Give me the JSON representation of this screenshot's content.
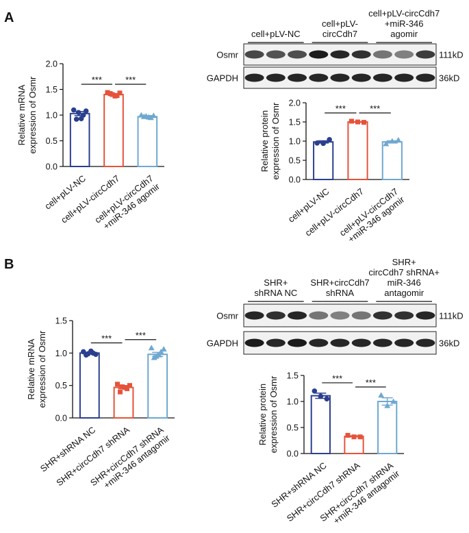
{
  "panel_labels": [
    "A",
    "B"
  ],
  "blots": [
    {
      "groups": [
        [
          "cell+pLV-NC"
        ],
        [
          "cell+pLV-",
          "circCdh7"
        ],
        [
          "cell+pLV-circCdh7",
          "+miR-346",
          "agomir"
        ]
      ],
      "rows": [
        {
          "label": "Osmr",
          "size": "111kD"
        },
        {
          "label": "GAPDH",
          "size": "36kD"
        }
      ]
    },
    {
      "groups": [
        [
          "SHR+",
          "shRNA NC"
        ],
        [
          "SHR+circCdh7",
          "shRNA"
        ],
        [
          "SHR+",
          "circCdh7 shRNA+",
          "miR-346",
          "antagomir"
        ]
      ],
      "rows": [
        {
          "label": "Osmr",
          "size": "111kD"
        },
        {
          "label": "GAPDH",
          "size": "36kD"
        }
      ]
    }
  ],
  "chart_data": [
    {
      "type": "bar",
      "ylabel": [
        "Relative mRNA",
        "expression of Osmr"
      ],
      "categories": [
        [
          "cell+pLV-NC"
        ],
        [
          "cell+pLV-circCdh7"
        ],
        [
          "cell+pLV-circCdh7",
          "+miR-346 agomir"
        ]
      ],
      "values": [
        1.03,
        1.4,
        0.97
      ],
      "errors": [
        0.04,
        0.02,
        0.02
      ],
      "points": [
        [
          1.1,
          1.05,
          1.0,
          0.92,
          0.93,
          1.08
        ],
        [
          1.44,
          1.4,
          1.38,
          1.42,
          1.37,
          1.43
        ],
        [
          1.0,
          0.98,
          0.95,
          0.97,
          0.96,
          0.99
        ]
      ],
      "colors": [
        "#2b3f8f",
        "#e5533a",
        "#6fa8d0"
      ],
      "ylim": [
        0,
        2
      ],
      "yticks": [
        {
          "value": 0,
          "label": "0.0"
        },
        0.5,
        {
          "value": 1,
          "label": "1.0"
        },
        1.5,
        {
          "value": 2,
          "label": "2.0"
        }
      ],
      "significance": [
        "***",
        "***"
      ]
    },
    {
      "type": "bar",
      "ylabel": [
        "Relative protein",
        "expression of Osmr"
      ],
      "categories": [
        [
          "cell+pLV-NC"
        ],
        [
          "cell+pLV-circCdh7"
        ],
        [
          "cell+pLV-circCdh7",
          "+miR-346 agomir"
        ]
      ],
      "values": [
        0.98,
        1.5,
        0.98
      ],
      "errors": [
        0.03,
        0.01,
        0.03
      ],
      "points": [
        [
          0.95,
          0.94,
          1.04
        ],
        [
          1.52,
          1.5,
          1.49
        ],
        [
          0.93,
          1.0,
          1.03
        ]
      ],
      "colors": [
        "#2b3f8f",
        "#e5533a",
        "#6fa8d0"
      ],
      "ylim": [
        0,
        2
      ],
      "yticks": [
        {
          "value": 0,
          "label": "0.0"
        },
        0.5,
        {
          "value": 1,
          "label": "1.0"
        },
        1.5,
        {
          "value": 2,
          "label": "2.0"
        }
      ],
      "significance": [
        "***",
        "***"
      ]
    },
    {
      "type": "bar",
      "ylabel": [
        "Relative mRNA",
        "expression of Osmr"
      ],
      "categories": [
        [
          "SHR+shRNA NC"
        ],
        [
          "SHR+circCdh7 shRNA"
        ],
        [
          "SHR+circCdh7 shRNA",
          "+miR-346 antagomir"
        ]
      ],
      "values": [
        1.0,
        0.47,
        0.98
      ],
      "errors": [
        0.01,
        0.02,
        0.03
      ],
      "points": [
        [
          1.02,
          0.99,
          1.0,
          0.97,
          1.03,
          0.98
        ],
        [
          0.52,
          0.48,
          0.45,
          0.4,
          0.47,
          0.5
        ],
        [
          1.08,
          0.95,
          1.02,
          0.93,
          0.97,
          1.06
        ]
      ],
      "colors": [
        "#2b3f8f",
        "#e5533a",
        "#6fa8d0"
      ],
      "ylim": [
        0,
        1.5
      ],
      "yticks": [
        {
          "value": 0,
          "label": "0.0"
        },
        0.5,
        {
          "value": 1,
          "label": "1.0"
        },
        1.5
      ],
      "significance": [
        "***",
        "***"
      ]
    },
    {
      "type": "bar",
      "ylabel": [
        "Relative protein",
        "expression of Osmr"
      ],
      "categories": [
        [
          "SHR+shRNA NC"
        ],
        [
          "SHR+circCdh7 shRNA"
        ],
        [
          "SHR+circCdh7 shRNA",
          "+miR-346 antagomir"
        ]
      ],
      "values": [
        1.11,
        0.33,
        1.0
      ],
      "errors": [
        0.05,
        0.01,
        0.07
      ],
      "points": [
        [
          1.2,
          1.1,
          1.05
        ],
        [
          0.35,
          0.32,
          0.32
        ],
        [
          1.12,
          0.92,
          1.0
        ]
      ],
      "colors": [
        "#2b3f8f",
        "#e5533a",
        "#6fa8d0"
      ],
      "ylim": [
        0,
        1.5
      ],
      "yticks": [
        {
          "value": 0,
          "label": "0.0"
        },
        0.5,
        {
          "value": 1,
          "label": "1.0"
        },
        1.5
      ],
      "significance": [
        "***",
        "***"
      ]
    }
  ]
}
